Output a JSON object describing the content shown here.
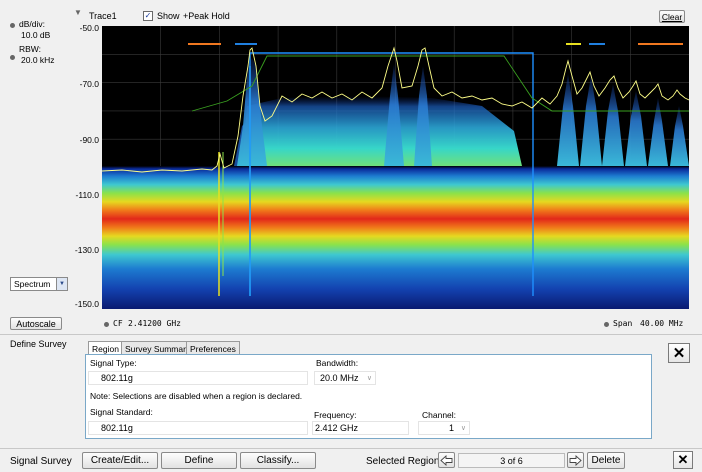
{
  "trace": {
    "name": "Trace1",
    "show_label": "Show",
    "peak_hold_label": "+Peak Hold",
    "clear_label": "Clear"
  },
  "left_panel": {
    "db_div_label": "dB/div:",
    "db_div_value": "10.0 dB",
    "rbw_label": "RBW:",
    "rbw_value": "20.0 kHz",
    "view_select": "Spectrum",
    "autoscale_label": "Autoscale"
  },
  "y_axis": {
    "ticks": [
      "-50.0",
      "-70.0",
      "-90.0",
      "-110.0",
      "-130.0",
      "-150.0"
    ]
  },
  "bottom_axis": {
    "cf_label": "CF",
    "cf_value": "2.41200 GHz",
    "span_label": "Span",
    "span_value": "40.00 MHz"
  },
  "define_survey": {
    "title": "Define Survey",
    "tabs": [
      "Region",
      "Survey Summary",
      "Preferences"
    ],
    "signal_type_label": "Signal Type:",
    "signal_type_value": "802.11g",
    "bandwidth_label": "Bandwidth:",
    "bandwidth_value": "20.0 MHz",
    "note": "Note: Selections are disabled when a region is declared.",
    "signal_standard_label": "Signal Standard:",
    "signal_standard_value": "802.11g",
    "frequency_label": "Frequency:",
    "frequency_value": "2.412 GHz",
    "channel_label": "Channel:",
    "channel_value": "1"
  },
  "footer": {
    "title": "Signal Survey",
    "create_edit_label": "Create/Edit...",
    "define_label": "Define",
    "classify_label": "Classify...",
    "selected_region_label": "Selected Region:",
    "selected_region_value": "3 of 6",
    "delete_label": "Delete"
  },
  "colors": {
    "plot_bg": "#000000",
    "marker_orange": "#f07820",
    "marker_blue": "#2080e0",
    "marker_yellow": "#e8e020",
    "trace_yellow": "#ffff80",
    "region_box": "#1e90ff"
  }
}
